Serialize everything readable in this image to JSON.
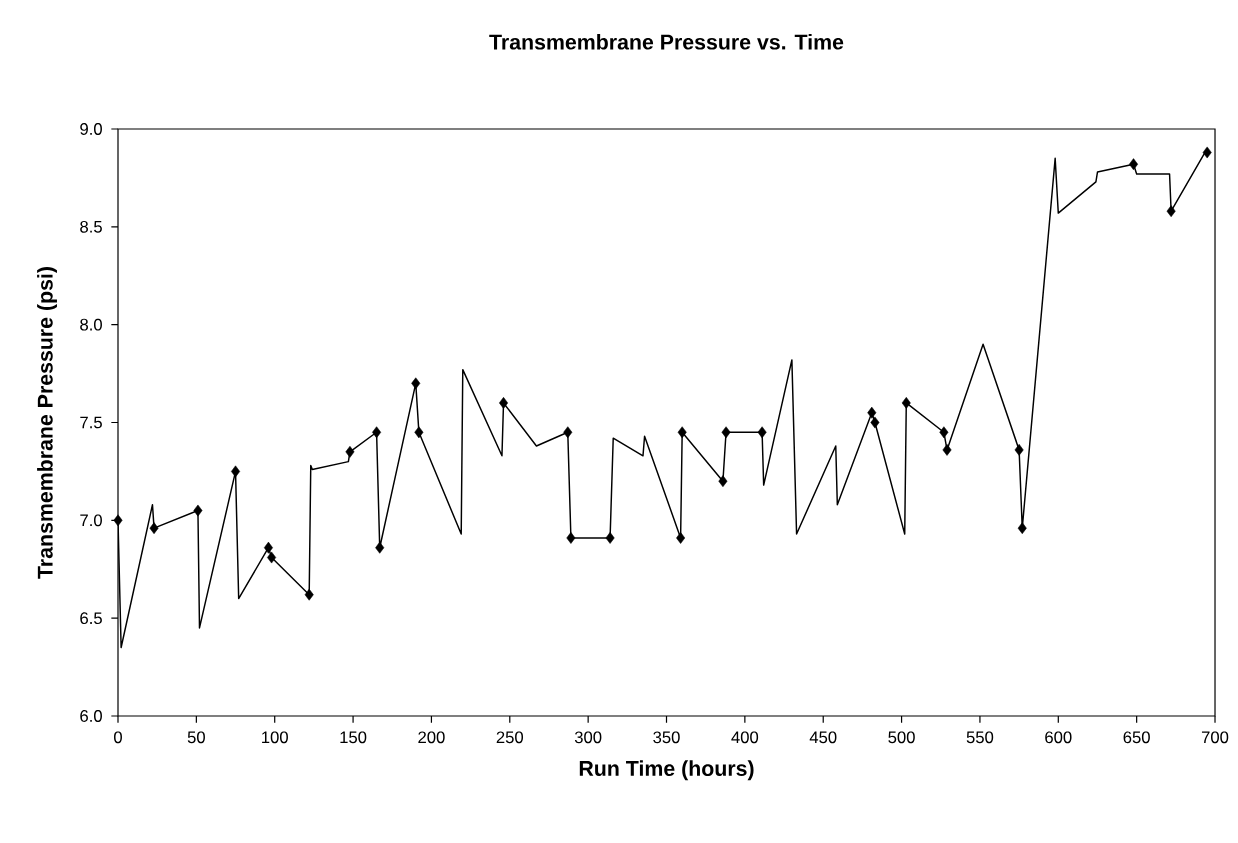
{
  "chart_data": {
    "type": "line",
    "title": "Transmembrane Pressure vs. Time",
    "xlabel": "Run Time (hours)",
    "ylabel": "Transmembrane Pressure (psi)",
    "xlim": [
      0,
      700
    ],
    "xticks": [
      0,
      50,
      100,
      150,
      200,
      250,
      300,
      350,
      400,
      450,
      500,
      550,
      600,
      650,
      700
    ],
    "ylim": [
      6.0,
      9.0
    ],
    "yticks": [
      {
        "value": 6.0,
        "label": "6.0"
      },
      {
        "value": 6.5,
        "label": "6.5"
      },
      {
        "value": 7.0,
        "label": "7.0"
      },
      {
        "value": 7.5,
        "label": "7.5"
      },
      {
        "value": 8.0,
        "label": "8.0"
      },
      {
        "value": 8.5,
        "label": "8.5"
      },
      {
        "value": 9.0,
        "label": "9.0"
      }
    ],
    "grid": false,
    "series": [
      {
        "marker": "none",
        "color": "#000000",
        "x": [
          0,
          2,
          22,
          23,
          51,
          52,
          75,
          77,
          96,
          98,
          122,
          123,
          124,
          147,
          148,
          165,
          167,
          190,
          192,
          219,
          220,
          245,
          246,
          267,
          287,
          289,
          314,
          316,
          335,
          336,
          359,
          360,
          386,
          388,
          411,
          412,
          430,
          433,
          458,
          459,
          481,
          483,
          502,
          503,
          527,
          529,
          552,
          575,
          577,
          598,
          600,
          624,
          625,
          648,
          650,
          671,
          672,
          695
        ],
        "values": [
          7.0,
          6.35,
          7.08,
          6.96,
          7.05,
          6.45,
          7.25,
          6.6,
          6.86,
          6.81,
          6.62,
          7.28,
          7.26,
          7.3,
          7.35,
          7.45,
          6.86,
          7.7,
          7.45,
          6.93,
          7.77,
          7.33,
          7.6,
          7.38,
          7.45,
          6.91,
          6.91,
          7.42,
          7.33,
          7.43,
          6.91,
          7.45,
          7.2,
          7.45,
          7.45,
          7.18,
          7.82,
          6.93,
          7.38,
          7.08,
          7.55,
          7.5,
          6.93,
          7.6,
          7.45,
          7.36,
          7.9,
          7.36,
          6.96,
          8.85,
          8.57,
          8.73,
          8.78,
          8.82,
          8.77,
          8.77,
          8.58,
          8.9
        ]
      },
      {
        "type": "scatter",
        "marker": "diamond",
        "color": "#000000",
        "x": [
          0,
          23,
          51,
          75,
          96,
          98,
          122,
          148,
          165,
          167,
          190,
          192,
          246,
          287,
          289,
          314,
          359,
          360,
          386,
          388,
          411,
          481,
          483,
          503,
          527,
          529,
          575,
          577,
          648,
          672,
          695
        ],
        "values": [
          7.0,
          6.96,
          7.05,
          7.25,
          6.86,
          6.81,
          6.62,
          7.35,
          7.45,
          6.86,
          7.7,
          7.45,
          7.6,
          7.45,
          6.91,
          6.91,
          6.91,
          7.45,
          7.2,
          7.45,
          7.45,
          7.55,
          7.5,
          7.6,
          7.45,
          7.36,
          7.36,
          6.96,
          8.82,
          8.58,
          8.88
        ]
      }
    ]
  }
}
